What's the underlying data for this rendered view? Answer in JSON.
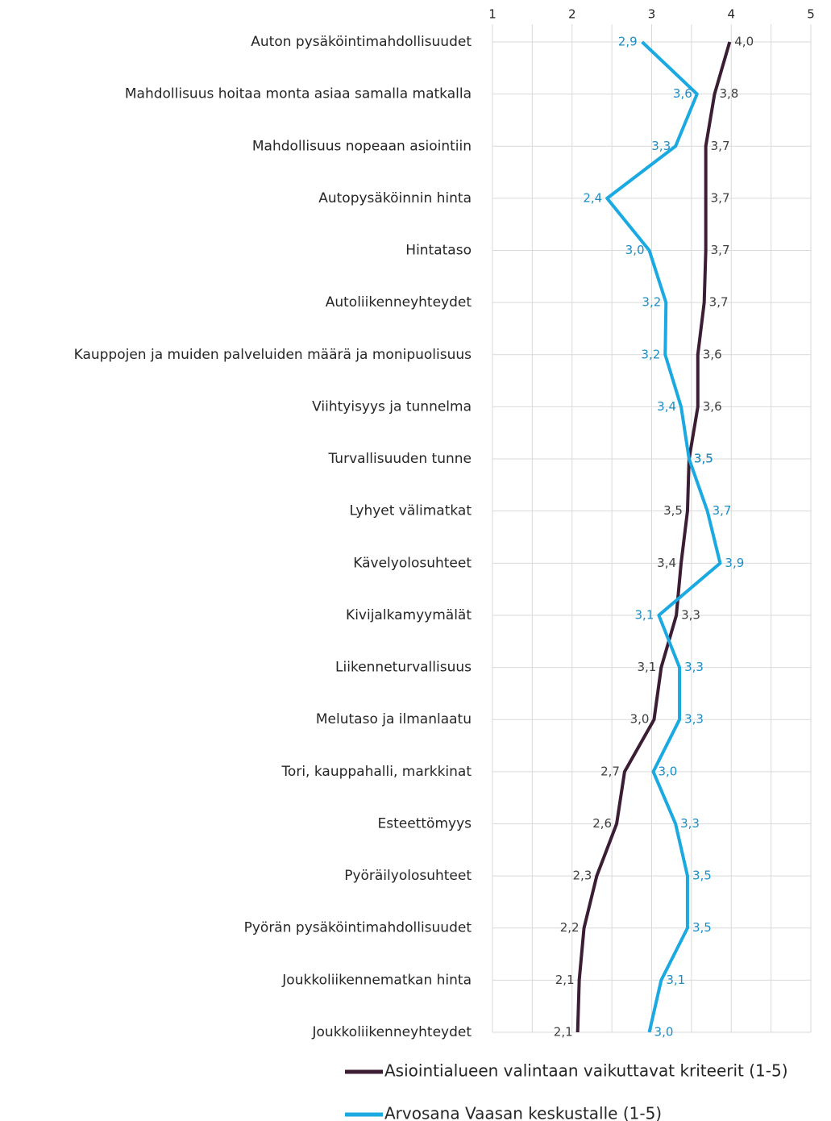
{
  "chart_data": {
    "type": "line",
    "orientation": "horizontal",
    "categories": [
      "Auton pysäköintimahdollisuudet",
      "Mahdollisuus hoitaa monta asiaa samalla matkalla",
      "Mahdollisuus nopeaan  asiointiin",
      "Autopysäköinnin hinta",
      "Hintataso",
      "Autoliikenneyhteydet",
      "Kauppojen ja muiden palveluiden määrä ja monipuolisuus",
      "Viihtyisyys ja tunnelma",
      "Turvallisuuden tunne",
      "Lyhyet välimatkat",
      "Kävelyolosuhteet",
      "Kivijalkamyymälät",
      "Liikenneturvallisuus",
      "Melutaso ja ilmanlaatu",
      "Tori, kauppahalli, markkinat",
      "Esteettömyys",
      "Pyöräilyolosuhteet",
      "Pyörän pysäköintimahdollisuudet",
      "Joukkoliikennematkan hinta",
      "Joukkoliikenneyhteydet"
    ],
    "series": [
      {
        "name": "Asiointialueen valintaan vaikuttavat kriteerit (1-5)",
        "color": "#3b1e33",
        "label_color": "#404040",
        "values": [
          3.98,
          3.79,
          3.68,
          3.68,
          3.68,
          3.66,
          3.58,
          3.58,
          3.47,
          3.45,
          3.37,
          3.31,
          3.12,
          3.03,
          2.66,
          2.56,
          2.31,
          2.15,
          2.09,
          2.07
        ],
        "value_labels": [
          "4,0",
          "3,8",
          "3,7",
          "3,7",
          "3,7",
          "3,7",
          "3,6",
          "3,6",
          "3,5",
          "3,5",
          "3,4",
          "3,3",
          "3,1",
          "3,0",
          "2,7",
          "2,6",
          "2,3",
          "2,2",
          "2,1",
          "2,1"
        ]
      },
      {
        "name": "Arvosana Vaasan keskustalle (1-5)",
        "color": "#1aa9e1",
        "label_color": "#1c8ec6",
        "values": [
          2.88,
          3.57,
          3.3,
          2.44,
          2.97,
          3.18,
          3.17,
          3.37,
          3.47,
          3.7,
          3.86,
          3.09,
          3.35,
          3.35,
          3.02,
          3.3,
          3.45,
          3.45,
          3.12,
          2.97
        ],
        "value_labels": [
          "2,9",
          "3,6",
          "3,3",
          "2,4",
          "3,0",
          "3,2",
          "3,2",
          "3,4",
          "3,5",
          "3,7",
          "3,9",
          "3,1",
          "3,3",
          "3,3",
          "3,0",
          "3,3",
          "3,5",
          "3,5",
          "3,1",
          "3,0"
        ]
      }
    ],
    "xlim": [
      1,
      5
    ],
    "xticks": [
      1,
      2,
      3,
      4,
      5
    ],
    "x_gridlines": [
      1,
      1.5,
      2,
      2.5,
      3,
      3.5,
      4,
      4.5,
      5
    ],
    "grid": true,
    "legend": "bottom"
  }
}
